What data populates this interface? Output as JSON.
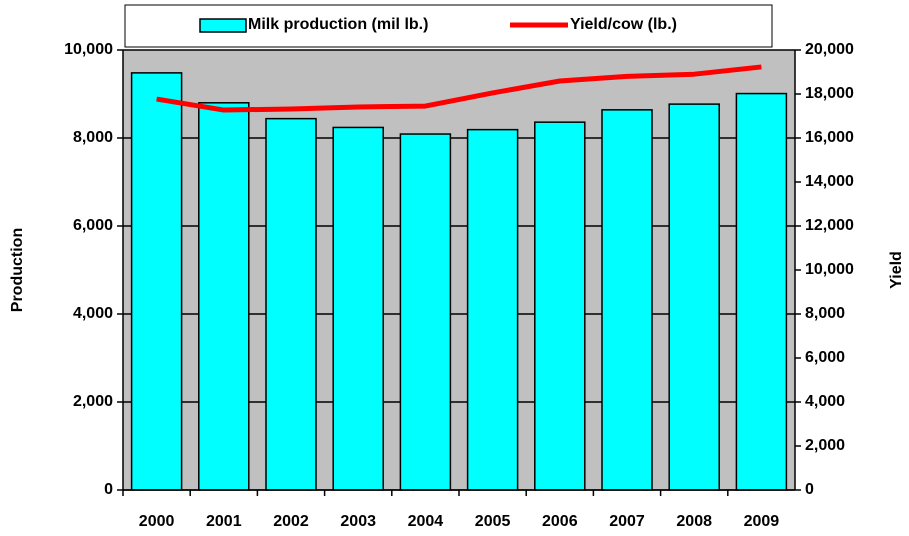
{
  "chart_data": {
    "type": "bar",
    "categories": [
      "2000",
      "2001",
      "2002",
      "2003",
      "2004",
      "2005",
      "2006",
      "2007",
      "2008",
      "2009"
    ],
    "series": [
      {
        "name": "Milk production (mil lb.)",
        "type": "bar",
        "color": "#00ffff",
        "values": [
          9480,
          8800,
          8440,
          8240,
          8090,
          8190,
          8360,
          8640,
          8770,
          9010
        ]
      },
      {
        "name": "Yield/cow (lb.)",
        "type": "line",
        "axis": "y2",
        "color": "#ff0000",
        "values": [
          17770,
          17270,
          17320,
          17410,
          17450,
          18050,
          18590,
          18800,
          18900,
          19230
        ]
      }
    ],
    "ylabel": "Production",
    "y2label": "Yield",
    "ylim": [
      0,
      10000
    ],
    "yticks": [
      0,
      {
        "value": 2000,
        "label": "2,000"
      },
      {
        "value": 4000,
        "label": "4,000"
      },
      {
        "value": 6000,
        "label": "6,000"
      },
      {
        "value": 8000,
        "label": "8,000"
      },
      {
        "value": 10000,
        "label": "10,000"
      }
    ],
    "y2lim": [
      0,
      20000
    ],
    "y2ticks": [
      0,
      {
        "value": 2000,
        "label": "2,000"
      },
      {
        "value": 4000,
        "label": "4,000"
      },
      {
        "value": 6000,
        "label": "6,000"
      },
      {
        "value": 8000,
        "label": "8,000"
      },
      {
        "value": 10000,
        "label": "10,000"
      },
      {
        "value": 12000,
        "label": "12,000"
      },
      {
        "value": 14000,
        "label": "14,000"
      },
      {
        "value": 16000,
        "label": "16,000"
      },
      {
        "value": 18000,
        "label": "18,000"
      },
      {
        "value": 20000,
        "label": "20,000"
      }
    ],
    "grid": true,
    "legend": "top",
    "plot_background": "#c0c0c0"
  }
}
